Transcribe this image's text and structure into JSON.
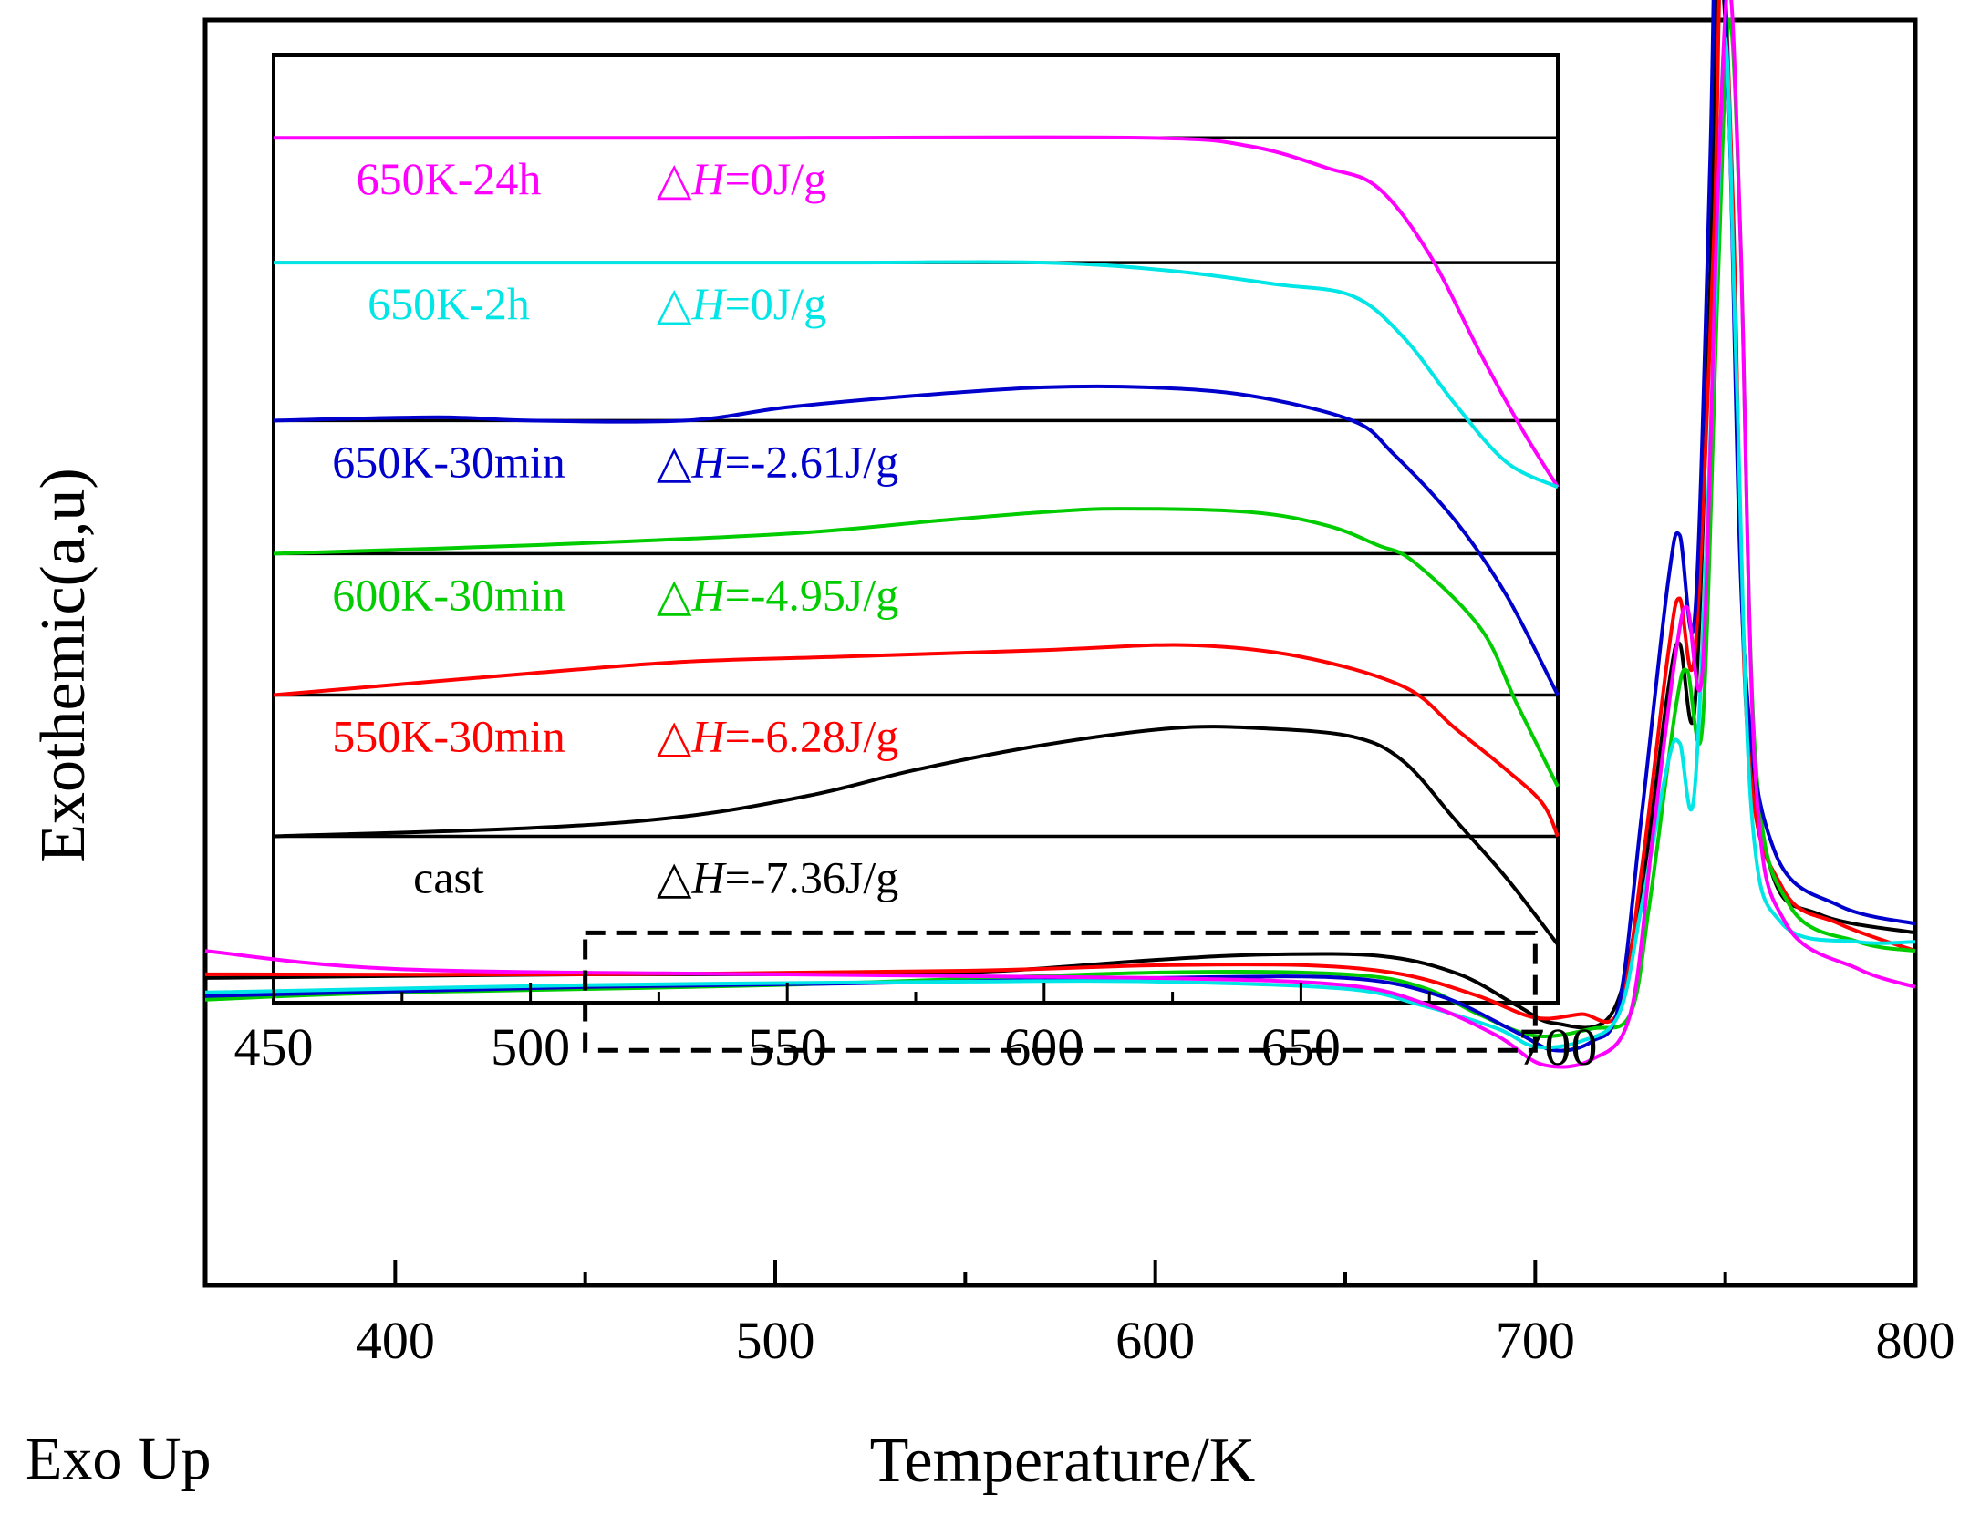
{
  "figure": {
    "corner_label": "Exo Up"
  },
  "chart_data": [
    {
      "name": "main",
      "type": "line",
      "xlabel": "Temperature/K",
      "ylabel": "Exothemic(a,u)",
      "xlim": [
        350,
        800
      ],
      "ylim": [
        -1.0,
        6.0
      ],
      "x_ticks": [
        400,
        500,
        600,
        700,
        800
      ],
      "x_tick_labels": [
        "400",
        "500",
        "600",
        "700",
        "800"
      ],
      "x_minor_ticks": [
        450,
        550,
        650,
        750
      ],
      "grid": false,
      "zoom_box": {
        "x": [
          450,
          700
        ],
        "y": [
          0.3,
          0.95
        ]
      },
      "series": [
        {
          "name": "cast",
          "color": "#000000",
          "points": [
            [
              350,
              0.7
            ],
            [
              450,
              0.72
            ],
            [
              520,
              0.72
            ],
            [
              560,
              0.74
            ],
            [
              600,
              0.8
            ],
            [
              630,
              0.83
            ],
            [
              660,
              0.82
            ],
            [
              680,
              0.72
            ],
            [
              695,
              0.55
            ],
            [
              705,
              0.45
            ],
            [
              720,
              0.5
            ],
            [
              728,
              1.2
            ],
            [
              735,
              2.3
            ],
            [
              738,
              2.55
            ],
            [
              742,
              2.2
            ],
            [
              746,
              4.5
            ],
            [
              748,
              6.3
            ],
            [
              751,
              5.5
            ],
            [
              755,
              2.5
            ],
            [
              762,
              1.3
            ],
            [
              775,
              1.05
            ],
            [
              800,
              0.95
            ]
          ]
        },
        {
          "name": "550K-30min",
          "color": "#ff0000",
          "points": [
            [
              350,
              0.72
            ],
            [
              450,
              0.72
            ],
            [
              550,
              0.74
            ],
            [
              600,
              0.77
            ],
            [
              640,
              0.77
            ],
            [
              665,
              0.72
            ],
            [
              685,
              0.6
            ],
            [
              700,
              0.48
            ],
            [
              712,
              0.5
            ],
            [
              722,
              0.52
            ],
            [
              728,
              1.3
            ],
            [
              735,
              2.5
            ],
            [
              738,
              2.8
            ],
            [
              742,
              2.5
            ],
            [
              747,
              4.8
            ],
            [
              749,
              6.4
            ],
            [
              752,
              5.0
            ],
            [
              756,
              2.0
            ],
            [
              765,
              1.2
            ],
            [
              780,
              1.0
            ],
            [
              800,
              0.85
            ]
          ]
        },
        {
          "name": "600K-30min",
          "color": "#00cc00",
          "points": [
            [
              350,
              0.58
            ],
            [
              400,
              0.62
            ],
            [
              500,
              0.66
            ],
            [
              600,
              0.73
            ],
            [
              650,
              0.72
            ],
            [
              670,
              0.65
            ],
            [
              685,
              0.5
            ],
            [
              700,
              0.38
            ],
            [
              715,
              0.42
            ],
            [
              725,
              0.5
            ],
            [
              730,
              1.1
            ],
            [
              737,
              2.2
            ],
            [
              740,
              2.4
            ],
            [
              744,
              2.1
            ],
            [
              748,
              4.5
            ],
            [
              751,
              6.0
            ],
            [
              754,
              4.8
            ],
            [
              758,
              1.9
            ],
            [
              767,
              1.1
            ],
            [
              785,
              0.9
            ],
            [
              800,
              0.85
            ]
          ]
        },
        {
          "name": "650K-30min",
          "color": "#0000cc",
          "points": [
            [
              350,
              0.6
            ],
            [
              450,
              0.65
            ],
            [
              520,
              0.67
            ],
            [
              600,
              0.7
            ],
            [
              650,
              0.7
            ],
            [
              675,
              0.6
            ],
            [
              695,
              0.4
            ],
            [
              705,
              0.3
            ],
            [
              715,
              0.35
            ],
            [
              722,
              0.55
            ],
            [
              728,
              1.6
            ],
            [
              735,
              2.9
            ],
            [
              738,
              3.15
            ],
            [
              742,
              2.7
            ],
            [
              746,
              5.2
            ],
            [
              748,
              7.0
            ],
            [
              751,
              5.5
            ],
            [
              755,
              2.5
            ],
            [
              763,
              1.4
            ],
            [
              780,
              1.1
            ],
            [
              800,
              1.0
            ]
          ]
        },
        {
          "name": "650K-2h",
          "color": "#00e5e5",
          "points": [
            [
              350,
              0.62
            ],
            [
              450,
              0.66
            ],
            [
              550,
              0.68
            ],
            [
              600,
              0.68
            ],
            [
              650,
              0.64
            ],
            [
              670,
              0.55
            ],
            [
              690,
              0.42
            ],
            [
              700,
              0.32
            ],
            [
              712,
              0.35
            ],
            [
              722,
              0.5
            ],
            [
              728,
              1.1
            ],
            [
              735,
              1.9
            ],
            [
              738,
              2.0
            ],
            [
              742,
              1.75
            ],
            [
              747,
              4.2
            ],
            [
              750,
              5.9
            ],
            [
              753,
              4.0
            ],
            [
              757,
              1.6
            ],
            [
              765,
              1.0
            ],
            [
              785,
              0.9
            ],
            [
              800,
              0.9
            ]
          ]
        },
        {
          "name": "650K-24h",
          "color": "#ff00ff",
          "points": [
            [
              350,
              0.85
            ],
            [
              400,
              0.75
            ],
            [
              500,
              0.72
            ],
            [
              600,
              0.7
            ],
            [
              650,
              0.66
            ],
            [
              672,
              0.55
            ],
            [
              690,
              0.38
            ],
            [
              702,
              0.22
            ],
            [
              715,
              0.25
            ],
            [
              725,
              0.5
            ],
            [
              731,
              1.5
            ],
            [
              737,
              2.5
            ],
            [
              740,
              2.75
            ],
            [
              744,
              2.4
            ],
            [
              748,
              5.0
            ],
            [
              751,
              6.2
            ],
            [
              754,
              4.8
            ],
            [
              758,
              1.8
            ],
            [
              766,
              1.0
            ],
            [
              785,
              0.75
            ],
            [
              800,
              0.65
            ]
          ]
        }
      ]
    },
    {
      "name": "inset",
      "type": "line",
      "xlim": [
        450,
        700
      ],
      "ylim": [
        -5.2,
        0.5
      ],
      "x_ticks": [
        450,
        500,
        550,
        600,
        650,
        700
      ],
      "x_tick_labels": [
        "450",
        "500",
        "550",
        "600",
        "650",
        "700"
      ],
      "x_minor_ticks": [
        475,
        525,
        575,
        625,
        675
      ],
      "grid": false,
      "separator_lines_y": [
        0,
        -0.75,
        -1.7,
        -2.5,
        -3.35,
        -4.2
      ],
      "series": [
        {
          "name": "650K-24h",
          "label": "650K-24h",
          "delta_h_prefix": "△",
          "delta_h_symbol": "H",
          "delta_h_value": "=0J/g",
          "color": "#ff00ff",
          "baseline": 0,
          "points": [
            [
              450,
              0
            ],
            [
              550,
              0
            ],
            [
              620,
              0
            ],
            [
              640,
              -0.05
            ],
            [
              655,
              -0.18
            ],
            [
              665,
              -0.3
            ],
            [
              675,
              -0.7
            ],
            [
              685,
              -1.3
            ],
            [
              693,
              -1.75
            ],
            [
              700,
              -2.1
            ]
          ]
        },
        {
          "name": "650K-2h",
          "label": "650K-2h",
          "delta_h_prefix": "△",
          "delta_h_symbol": "H",
          "delta_h_value": "=0J/g",
          "color": "#00e5e5",
          "baseline": -0.75,
          "points": [
            [
              450,
              -0.75
            ],
            [
              500,
              -0.75
            ],
            [
              560,
              -0.75
            ],
            [
              600,
              -0.75
            ],
            [
              625,
              -0.8
            ],
            [
              645,
              -0.88
            ],
            [
              660,
              -0.95
            ],
            [
              670,
              -1.2
            ],
            [
              680,
              -1.6
            ],
            [
              690,
              -1.95
            ],
            [
              700,
              -2.1
            ]
          ]
        },
        {
          "name": "650K-30min",
          "label": "650K-30min",
          "delta_h_prefix": "△",
          "delta_h_symbol": "H",
          "delta_h_value": "=-2.61J/g",
          "color": "#0000cc",
          "baseline": -1.7,
          "points": [
            [
              450,
              -1.7
            ],
            [
              482,
              -1.68
            ],
            [
              500,
              -1.7
            ],
            [
              530,
              -1.7
            ],
            [
              550,
              -1.62
            ],
            [
              575,
              -1.55
            ],
            [
              600,
              -1.5
            ],
            [
              620,
              -1.5
            ],
            [
              640,
              -1.55
            ],
            [
              660,
              -1.7
            ],
            [
              668,
              -1.9
            ],
            [
              680,
              -2.3
            ],
            [
              690,
              -2.75
            ],
            [
              700,
              -3.35
            ]
          ]
        },
        {
          "name": "600K-30min",
          "label": "600K-30min",
          "delta_h_prefix": "△",
          "delta_h_symbol": "H",
          "delta_h_value": "=-4.95J/g",
          "color": "#00cc00",
          "baseline": -2.5,
          "points": [
            [
              450,
              -2.5
            ],
            [
              500,
              -2.45
            ],
            [
              550,
              -2.38
            ],
            [
              580,
              -2.3
            ],
            [
              600,
              -2.25
            ],
            [
              615,
              -2.23
            ],
            [
              640,
              -2.25
            ],
            [
              655,
              -2.33
            ],
            [
              665,
              -2.45
            ],
            [
              672,
              -2.55
            ],
            [
              685,
              -2.95
            ],
            [
              692,
              -3.4
            ],
            [
              700,
              -3.9
            ]
          ]
        },
        {
          "name": "550K-30min",
          "label": "550K-30min",
          "delta_h_prefix": "△",
          "delta_h_symbol": "H",
          "delta_h_value": "=-6.28J/g",
          "color": "#ff0000",
          "baseline": -3.35,
          "points": [
            [
              450,
              -3.35
            ],
            [
              500,
              -3.22
            ],
            [
              530,
              -3.15
            ],
            [
              560,
              -3.12
            ],
            [
              600,
              -3.08
            ],
            [
              628,
              -3.05
            ],
            [
              650,
              -3.12
            ],
            [
              670,
              -3.3
            ],
            [
              680,
              -3.55
            ],
            [
              690,
              -3.8
            ],
            [
              697,
              -4.0
            ],
            [
              700,
              -4.2
            ]
          ]
        },
        {
          "name": "cast",
          "label": "cast",
          "delta_h_prefix": "△",
          "delta_h_symbol": "H",
          "delta_h_value": "=-7.36J/g",
          "color": "#000000",
          "baseline": -4.2,
          "points": [
            [
              450,
              -4.2
            ],
            [
              500,
              -4.15
            ],
            [
              530,
              -4.08
            ],
            [
              555,
              -3.95
            ],
            [
              575,
              -3.8
            ],
            [
              600,
              -3.65
            ],
            [
              625,
              -3.55
            ],
            [
              642,
              -3.55
            ],
            [
              660,
              -3.6
            ],
            [
              670,
              -3.75
            ],
            [
              680,
              -4.1
            ],
            [
              690,
              -4.45
            ],
            [
              700,
              -4.85
            ]
          ]
        }
      ]
    }
  ]
}
